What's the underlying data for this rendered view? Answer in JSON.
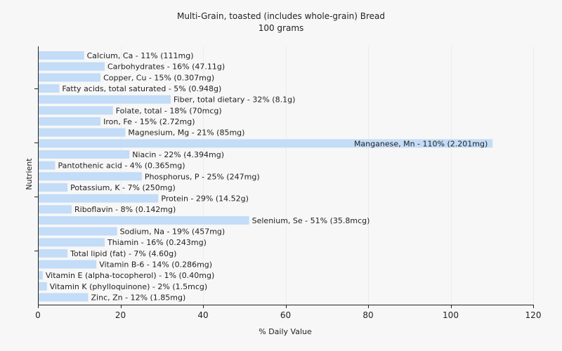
{
  "chart_data": {
    "type": "bar",
    "orientation": "horizontal",
    "title": "Multi-Grain, toasted (includes whole-grain) Bread",
    "subtitle": "100 grams",
    "xlabel": "% Daily Value",
    "ylabel": "Nutrient",
    "xlim": [
      0,
      120
    ],
    "xticks": [
      0,
      20,
      40,
      60,
      80,
      100,
      120
    ],
    "grid": true,
    "bar_color": "#c3dcf7",
    "categories": [
      "Calcium, Ca - 11% (111mg)",
      "Carbohydrates - 16% (47.11g)",
      "Copper, Cu - 15% (0.307mg)",
      "Fatty acids, total saturated - 5% (0.948g)",
      "Fiber, total dietary - 32% (8.1g)",
      "Folate, total - 18% (70mcg)",
      "Iron, Fe - 15% (2.72mg)",
      "Magnesium, Mg - 21% (85mg)",
      "Manganese, Mn - 110% (2.201mg)",
      "Niacin - 22% (4.394mg)",
      "Pantothenic acid - 4% (0.365mg)",
      "Phosphorus, P - 25% (247mg)",
      "Potassium, K - 7% (250mg)",
      "Protein - 29% (14.52g)",
      "Riboflavin - 8% (0.142mg)",
      "Selenium, Se - 51% (35.8mcg)",
      "Sodium, Na - 19% (457mg)",
      "Thiamin - 16% (0.243mg)",
      "Total lipid (fat) - 7% (4.60g)",
      "Vitamin B-6 - 14% (0.286mg)",
      "Vitamin E (alpha-tocopherol) - 1% (0.40mg)",
      "Vitamin K (phylloquinone) - 2% (1.5mcg)",
      "Zinc, Zn - 12% (1.85mg)"
    ],
    "values": [
      11,
      16,
      15,
      5,
      32,
      18,
      15,
      21,
      110,
      22,
      4,
      25,
      7,
      29,
      8,
      51,
      19,
      16,
      7,
      14,
      1,
      2,
      12
    ]
  }
}
